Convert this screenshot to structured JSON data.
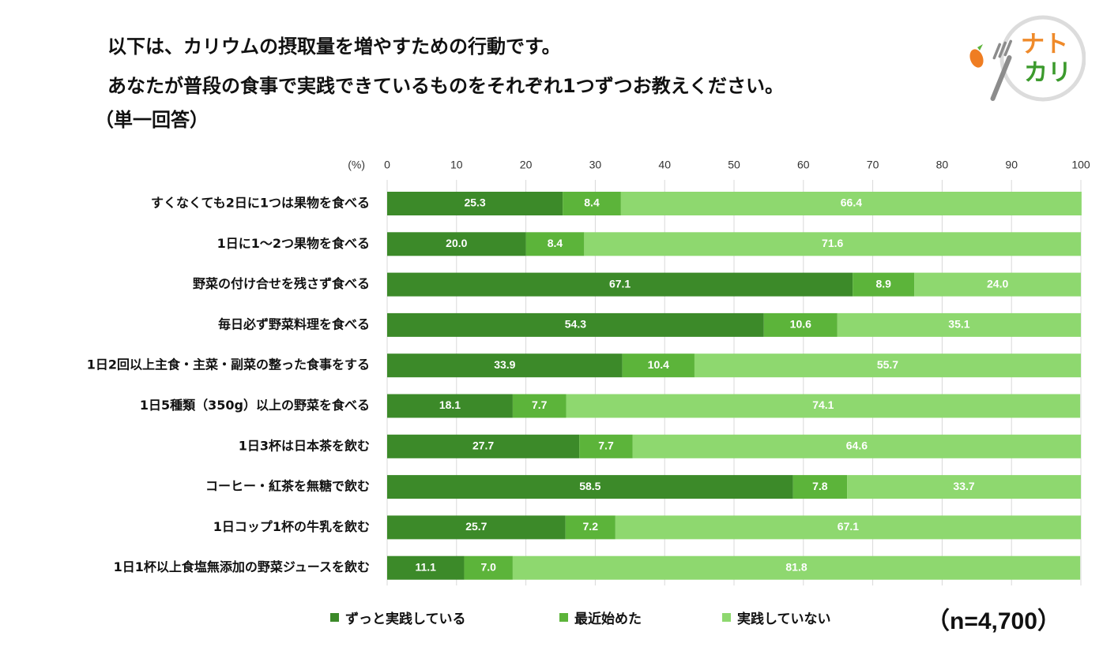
{
  "question": {
    "line1": "以下は、カリウムの摂取量を増やすための行動です。",
    "line2": "あなたが普段の食事で実践できているものをそれぞれ1つずつお教えください。",
    "note": "（単一回答）"
  },
  "logo": {
    "text1": "ナト",
    "text2": "カリ"
  },
  "sample_size": "（n=4,700）",
  "colors": {
    "always": "#3c8a29",
    "recent": "#5cb43a",
    "not": "#8ed86f",
    "grid": "#d9d9d9"
  },
  "chart_data": {
    "type": "bar",
    "orientation": "horizontal",
    "stacked": true,
    "unit_label": "(%)",
    "xlim": [
      0,
      100
    ],
    "x_ticks": [
      0,
      10,
      20,
      30,
      40,
      50,
      60,
      70,
      80,
      90,
      100
    ],
    "grid": true,
    "legend_position": "bottom",
    "categories": [
      "すくなくても2日に1つは果物を食べる",
      "1日に1～2つ果物を食べる",
      "野菜の付け合せを残さず食べる",
      "毎日必ず野菜料理を食べる",
      "1日2回以上主食・主菜・副菜の整った食事をする",
      "1日5種類（350g）以上の野菜を食べる",
      "1日3杯は日本茶を飲む",
      "コーヒー・紅茶を無糖で飲む",
      "1日コップ1杯の牛乳を飲む",
      "1日1杯以上食塩無添加の野菜ジュースを飲む"
    ],
    "series": [
      {
        "name": "ずっと実践している",
        "values": [
          25.3,
          20.0,
          67.1,
          54.3,
          33.9,
          18.1,
          27.7,
          58.5,
          25.7,
          11.1
        ],
        "labels": [
          "25.3",
          "20.0",
          "67.1",
          "54.3",
          "33.9",
          "18.1",
          "27.7",
          "58.5",
          "25.7",
          "11.1"
        ]
      },
      {
        "name": "最近始めた",
        "values": [
          8.4,
          8.4,
          8.9,
          10.6,
          10.4,
          7.7,
          7.7,
          7.8,
          7.2,
          7.0
        ],
        "labels": [
          "8.4",
          "8.4",
          "8.9",
          "10.6",
          "10.4",
          "7.7",
          "7.7",
          "7.8",
          "7.2",
          "7.0"
        ]
      },
      {
        "name": "実践していない",
        "values": [
          66.4,
          71.6,
          24.0,
          35.1,
          55.7,
          74.1,
          64.6,
          33.7,
          67.1,
          81.8
        ],
        "labels": [
          "66.4",
          "71.6",
          "24.0",
          "35.1",
          "55.7",
          "74.1",
          "64.6",
          "33.7",
          "67.1",
          "81.8"
        ]
      }
    ]
  }
}
